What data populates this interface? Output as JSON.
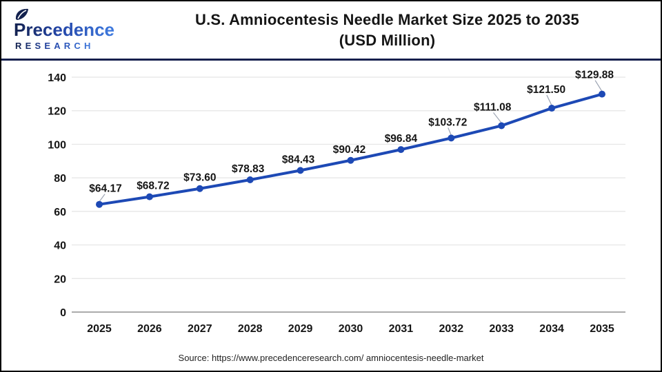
{
  "header": {
    "logo": {
      "line1": "Precedence",
      "line2": "RESEARCH"
    },
    "title_line1": "U.S. Amniocentesis Needle Market Size 2025 to 2035",
    "title_line2": "(USD Million)"
  },
  "chart_data": {
    "type": "line",
    "title": "U.S. Amniocentesis Needle Market Size 2025 to 2035 (USD Million)",
    "categories": [
      "2025",
      "2026",
      "2027",
      "2028",
      "2029",
      "2030",
      "2031",
      "2032",
      "2033",
      "2034",
      "2035"
    ],
    "series": [
      {
        "name": "U.S. Amniocentesis Needle Market Size (USD Million)",
        "values": [
          64.17,
          68.72,
          73.6,
          78.83,
          84.43,
          90.42,
          96.84,
          103.72,
          111.08,
          121.5,
          129.88
        ]
      }
    ],
    "data_labels": [
      "$64.17",
      "$68.72",
      "$73.60",
      "$78.83",
      "$84.43",
      "$90.42",
      "$96.84",
      "$103.72",
      "$111.08",
      "$121.50",
      "$129.88"
    ],
    "ylim": [
      0,
      140
    ],
    "yticks": [
      0,
      20,
      40,
      60,
      80,
      100,
      120,
      140
    ],
    "grid": true,
    "legend": "none",
    "line_color": "#1d49b5",
    "marker_color": "#1d49b5",
    "gridline_color": "#e4e4e4",
    "axisline_color": "#ababab",
    "label_color": "#151515",
    "leader_line_color": "#9aa2b1"
  },
  "footer": {
    "source": "Source: https://www.precedenceresearch.com/ amniocentesis-needle-market"
  },
  "colors": {
    "accent_navy": "#141f4d",
    "logo_dark": "#13214e",
    "logo_mid": "#2446a8",
    "logo_light": "#3f7be0",
    "border": "#000000"
  }
}
